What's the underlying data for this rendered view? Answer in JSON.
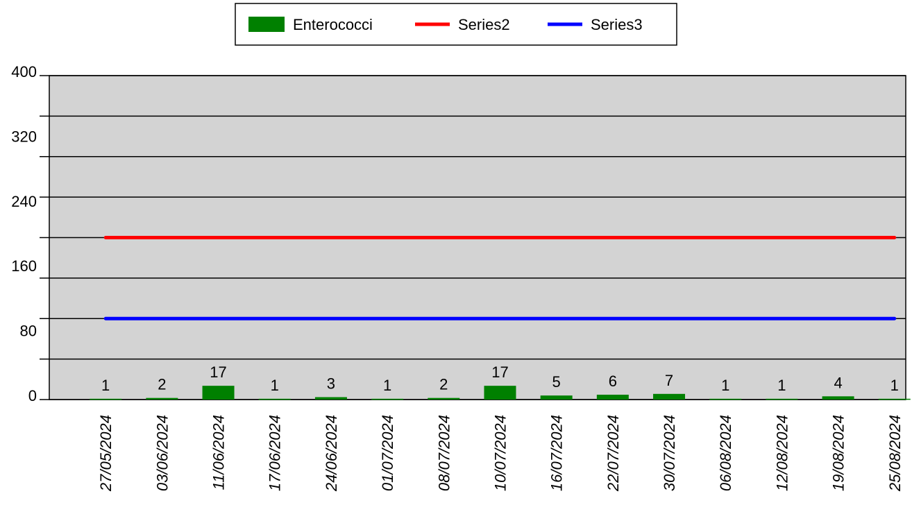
{
  "chart_data": {
    "type": "bar",
    "categories": [
      "27/05/2024",
      "03/06/2024",
      "11/06/2024",
      "17/06/2024",
      "24/06/2024",
      "01/07/2024",
      "08/07/2024",
      "10/07/2024",
      "16/07/2024",
      "22/07/2024",
      "30/07/2024",
      "06/08/2024",
      "12/08/2024",
      "19/08/2024",
      "25/08/2024"
    ],
    "series": [
      {
        "name": "Enterococci",
        "type": "bar",
        "color": "#008000",
        "values": [
          1,
          2,
          17,
          1,
          3,
          1,
          2,
          17,
          5,
          6,
          7,
          1,
          1,
          4,
          1
        ]
      },
      {
        "name": "Series2",
        "type": "line",
        "color": "#ff0000",
        "values": [
          200,
          200,
          200,
          200,
          200,
          200,
          200,
          200,
          200,
          200,
          200,
          200,
          200,
          200,
          200
        ]
      },
      {
        "name": "Series3",
        "type": "line",
        "color": "#0000ff",
        "values": [
          100,
          100,
          100,
          100,
          100,
          100,
          100,
          100,
          100,
          100,
          100,
          100,
          100,
          100,
          100
        ]
      }
    ],
    "data_labels": [
      "1",
      "2",
      "17",
      "1",
      "3",
      "1",
      "2",
      "17",
      "5",
      "6",
      "7",
      "1",
      "1",
      "4",
      "1"
    ],
    "ylim": [
      0,
      400
    ],
    "yticks": [
      "0",
      "80",
      "160",
      "240",
      "320",
      "400"
    ],
    "title": "",
    "xlabel": "",
    "ylabel": "",
    "grid": true,
    "legend_position": "top-center",
    "plot_background": "#d3d3d3"
  }
}
